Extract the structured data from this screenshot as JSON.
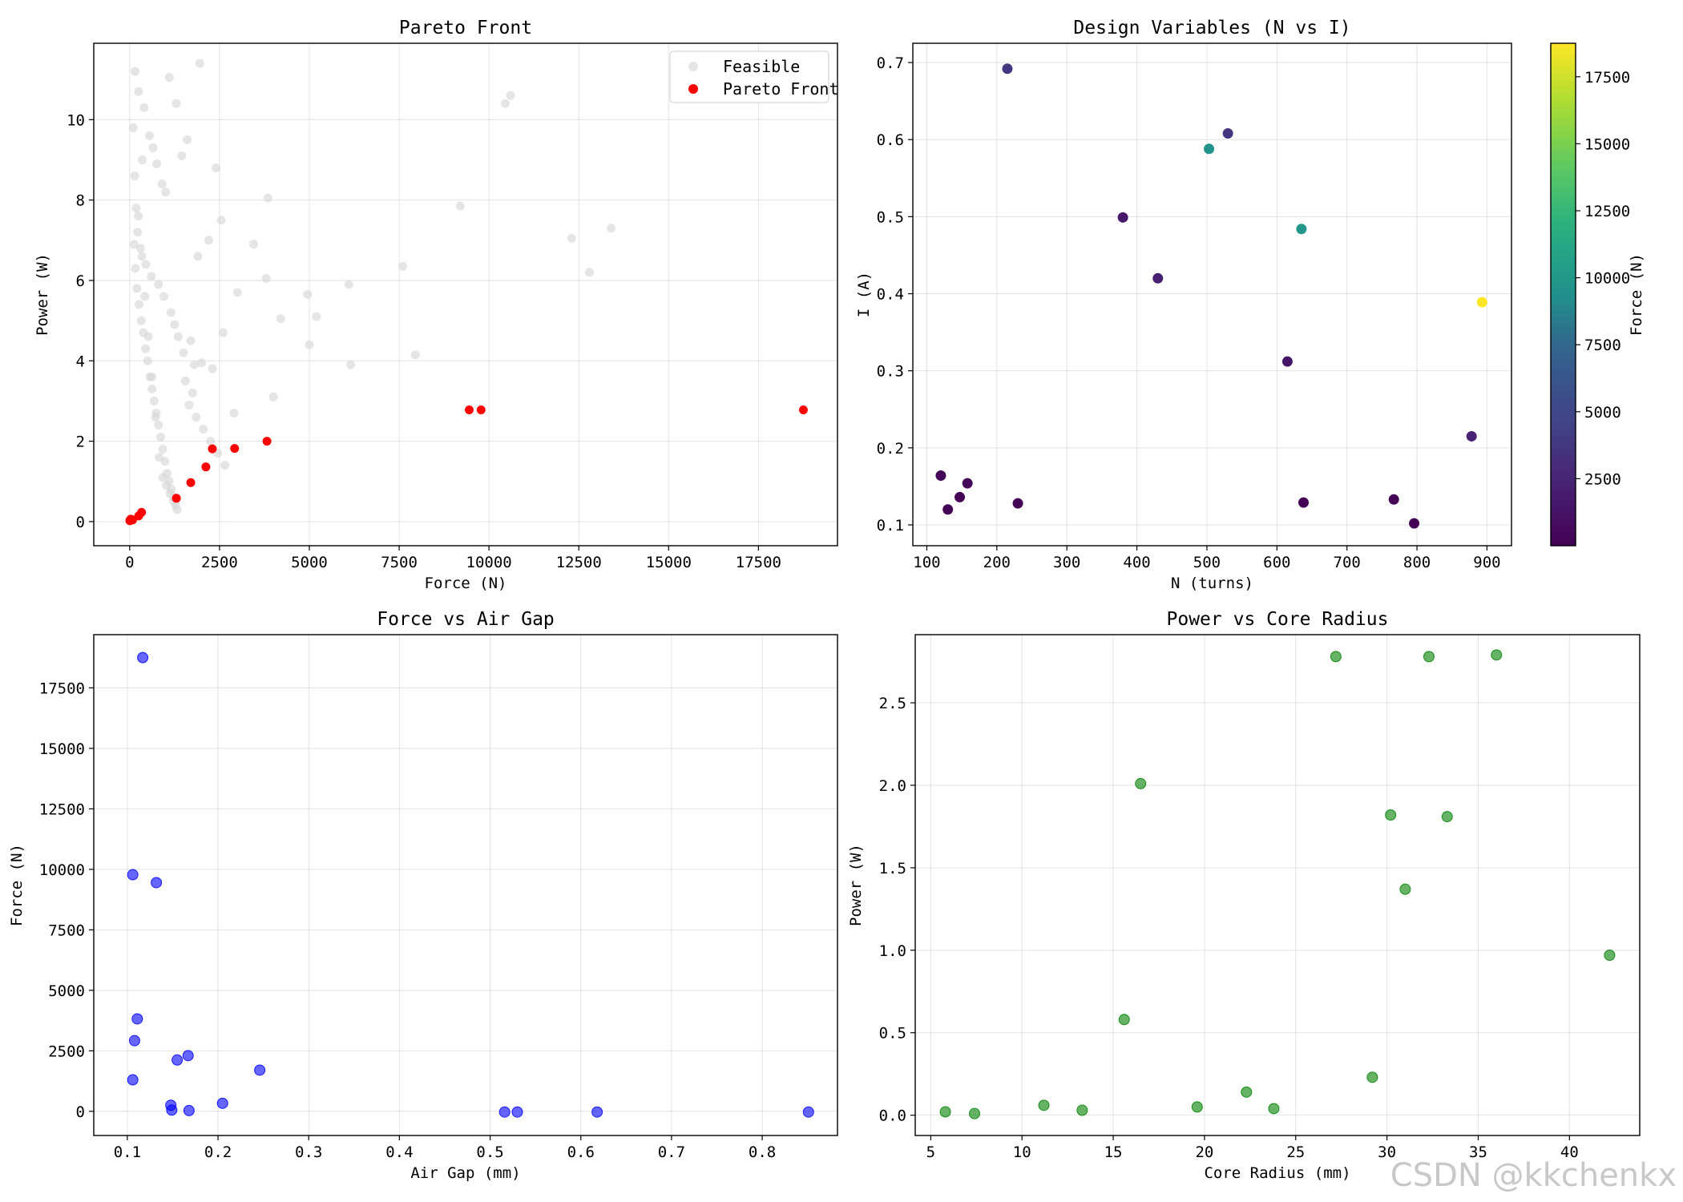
{
  "chart_data": [
    {
      "type": "scatter",
      "title": "Pareto Front",
      "xlabel": "Force (N)",
      "ylabel": "Power (W)",
      "xlim": [
        -1000,
        19700
      ],
      "ylim": [
        -0.6,
        11.9
      ],
      "xticks": [
        0,
        2500,
        5000,
        7500,
        10000,
        12500,
        15000,
        17500
      ],
      "yticks": [
        0,
        2,
        4,
        6,
        8,
        10
      ],
      "grid": true,
      "legend": {
        "location": "upper right",
        "entries": [
          "Feasible",
          "Pareto Front"
        ]
      },
      "series": [
        {
          "name": "Feasible",
          "color": "#d3d3d3",
          "x": [
            1950,
            10600,
            10450,
            9200,
            13400,
            12300,
            12800,
            7600,
            6100,
            5200,
            4950,
            4200,
            3450,
            3850,
            3800,
            3000,
            2550,
            2400,
            2200,
            1900,
            1600,
            1450,
            1300,
            1100,
            2900,
            7950,
            6150,
            4000,
            5000,
            2600,
            2300,
            2000,
            1700,
            150,
            250,
            400,
            550,
            650,
            750,
            900,
            1000,
            350,
            180,
            220,
            300,
            450,
            600,
            800,
            950,
            1150,
            1250,
            1350,
            1500,
            1800,
            1550,
            1750,
            1650,
            1850,
            2050,
            2250,
            2450,
            2650,
            120,
            160,
            200,
            260,
            320,
            380,
            440,
            500,
            560,
            620,
            680,
            740,
            800,
            860,
            920,
            980,
            1040,
            1100,
            1160,
            1220,
            1280,
            100,
            140,
            240,
            340,
            420,
            520,
            620,
            720,
            820,
            920,
            1020,
            1120,
            1220,
            1320
          ],
          "y": [
            11.4,
            10.6,
            10.4,
            7.85,
            7.3,
            7.05,
            6.2,
            6.35,
            5.9,
            5.1,
            5.65,
            5.05,
            6.9,
            8.05,
            6.05,
            5.7,
            7.5,
            8.8,
            7.0,
            6.6,
            9.5,
            9.1,
            10.4,
            11.05,
            2.7,
            4.15,
            3.9,
            3.1,
            4.4,
            4.7,
            3.8,
            3.95,
            4.5,
            11.2,
            10.7,
            10.3,
            9.6,
            9.3,
            8.9,
            8.4,
            8.2,
            9.0,
            7.8,
            7.2,
            6.8,
            6.4,
            6.1,
            5.9,
            5.6,
            5.2,
            4.9,
            4.6,
            4.2,
            3.9,
            3.5,
            3.2,
            2.9,
            2.6,
            2.3,
            2.0,
            1.7,
            1.4,
            6.9,
            6.3,
            5.8,
            5.4,
            5.0,
            4.7,
            4.3,
            4.0,
            3.6,
            3.3,
            3.0,
            2.7,
            2.4,
            2.1,
            1.8,
            1.5,
            1.2,
            1.0,
            0.8,
            0.6,
            0.4,
            9.8,
            8.6,
            7.6,
            6.6,
            5.6,
            4.6,
            3.6,
            2.6,
            1.6,
            1.1,
            0.9,
            0.7,
            0.5,
            0.3
          ]
        },
        {
          "name": "Pareto Front",
          "color": "#ff0000",
          "x": [
            18750,
            9780,
            9450,
            3820,
            2920,
            2300,
            2120,
            1700,
            1300,
            330,
            250,
            30,
            10,
            5,
            80
          ],
          "y": [
            2.78,
            2.78,
            2.78,
            2.0,
            1.82,
            1.81,
            1.36,
            0.97,
            0.58,
            0.23,
            0.14,
            0.06,
            0.04,
            0.02,
            0.04
          ]
        }
      ]
    },
    {
      "type": "scatter",
      "title": "Design Variables (N vs I)",
      "xlabel": "N (turns)",
      "ylabel": "I (A)",
      "xlim": [
        80,
        935
      ],
      "ylim": [
        0.073,
        0.725
      ],
      "xticks": [
        100,
        200,
        300,
        400,
        500,
        600,
        700,
        800,
        900
      ],
      "yticks": [
        0.1,
        0.2,
        0.3,
        0.4,
        0.5,
        0.6,
        0.7
      ],
      "grid": true,
      "colorbar": {
        "label": "Force (N)",
        "cmap": "viridis",
        "range": [
          0,
          18750
        ],
        "ticks": [
          2500,
          5000,
          7500,
          10000,
          12500,
          15000,
          17500
        ]
      },
      "points": [
        {
          "x": 215,
          "y": 0.692,
          "c": 3800
        },
        {
          "x": 530,
          "y": 0.608,
          "c": 3800
        },
        {
          "x": 503,
          "y": 0.588,
          "c": 9450
        },
        {
          "x": 380,
          "y": 0.499,
          "c": 1700
        },
        {
          "x": 635,
          "y": 0.484,
          "c": 9780
        },
        {
          "x": 430,
          "y": 0.42,
          "c": 2120
        },
        {
          "x": 893,
          "y": 0.389,
          "c": 18750
        },
        {
          "x": 615,
          "y": 0.312,
          "c": 1300
        },
        {
          "x": 878,
          "y": 0.215,
          "c": 2300
        },
        {
          "x": 120,
          "y": 0.164,
          "c": 300
        },
        {
          "x": 158,
          "y": 0.154,
          "c": 200
        },
        {
          "x": 147,
          "y": 0.136,
          "c": 150
        },
        {
          "x": 230,
          "y": 0.128,
          "c": 100
        },
        {
          "x": 638,
          "y": 0.129,
          "c": 50
        },
        {
          "x": 767,
          "y": 0.133,
          "c": 30
        },
        {
          "x": 130,
          "y": 0.12,
          "c": 20
        },
        {
          "x": 796,
          "y": 0.102,
          "c": 10
        }
      ]
    },
    {
      "type": "scatter",
      "title": "Force vs Air Gap",
      "xlabel": "Air Gap (mm)",
      "ylabel": "Force (N)",
      "xlim": [
        0.063,
        0.883
      ],
      "ylim": [
        -1000,
        19700
      ],
      "xticks": [
        0.1,
        0.2,
        0.3,
        0.4,
        0.5,
        0.6,
        0.7,
        0.8
      ],
      "yticks": [
        0,
        2500,
        5000,
        7500,
        10000,
        12500,
        15000,
        17500
      ],
      "grid": true,
      "series": [
        {
          "name": "Force vs Air Gap",
          "color": "#0000ff",
          "x": [
            0.117,
            0.106,
            0.132,
            0.111,
            0.108,
            0.106,
            0.167,
            0.155,
            0.246,
            0.148,
            0.205,
            0.149,
            0.168,
            0.516,
            0.53,
            0.618,
            0.851
          ],
          "y": [
            18750,
            9780,
            9450,
            3820,
            2920,
            1300,
            2300,
            2120,
            1700,
            250,
            330,
            50,
            30,
            -30,
            -30,
            -30,
            -30
          ]
        }
      ]
    },
    {
      "type": "scatter",
      "title": "Power vs Core Radius",
      "xlabel": "Core Radius (mm)",
      "ylabel": "Power (W)",
      "xlim": [
        4.15,
        43.85
      ],
      "ylim": [
        -0.123,
        2.913
      ],
      "xticks": [
        5,
        10,
        15,
        20,
        25,
        30,
        35,
        40
      ],
      "yticks": [
        0.0,
        0.5,
        1.0,
        1.5,
        2.0,
        2.5
      ],
      "grid": true,
      "series": [
        {
          "name": "Power vs Core Radius",
          "color": "#008000",
          "x": [
            27.2,
            32.3,
            36.0,
            16.5,
            30.2,
            33.3,
            31.0,
            42.2,
            15.6,
            29.2,
            22.3,
            11.2,
            13.3,
            19.6,
            23.8,
            5.8,
            7.4
          ],
          "y": [
            2.78,
            2.78,
            2.79,
            2.01,
            1.82,
            1.81,
            1.37,
            0.97,
            0.58,
            0.23,
            0.14,
            0.06,
            0.03,
            0.05,
            0.04,
            0.02,
            0.01
          ]
        }
      ]
    }
  ],
  "watermark": "CSDN @kkchenkx"
}
